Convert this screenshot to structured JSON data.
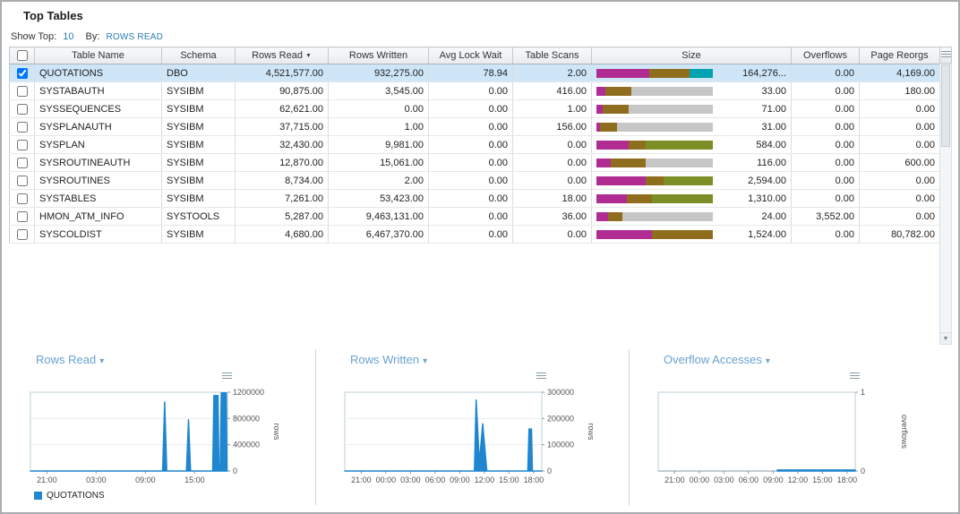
{
  "page": {
    "title": "Top Tables"
  },
  "controls": {
    "show_top_label": "Show Top:",
    "show_top_value": "10",
    "by_label": "By:",
    "by_value": "ROWS READ"
  },
  "table": {
    "headers": [
      "Table Name",
      "Schema",
      "Rows Read",
      "Rows Written",
      "Avg Lock Wait",
      "Table Scans",
      "Size",
      "Overflows",
      "Page Reorgs"
    ],
    "sort": {
      "column": "Rows Read",
      "direction": "desc"
    },
    "rows": [
      {
        "checked": true,
        "selected": true,
        "table_name": "QUOTATIONS",
        "schema": "DBO",
        "rows_read": "4,521,577.00",
        "rows_written": "932,275.00",
        "avg_lock_wait": "78.94",
        "table_scans": "2.00",
        "size_value": "164,276...",
        "overflows": "0.00",
        "page_reorgs": "4,169.00",
        "size_bar": [
          {
            "color": "#b02c92",
            "pct": 45
          },
          {
            "color": "#8f6d1f",
            "pct": 35
          },
          {
            "color": "#00a3af",
            "pct": 20
          }
        ]
      },
      {
        "checked": false,
        "selected": false,
        "table_name": "SYSTABAUTH",
        "schema": "SYSIBM",
        "rows_read": "90,875.00",
        "rows_written": "3,545.00",
        "avg_lock_wait": "0.00",
        "table_scans": "416.00",
        "size_value": "33.00",
        "overflows": "0.00",
        "page_reorgs": "180.00",
        "size_bar": [
          {
            "color": "#b02c92",
            "pct": 8
          },
          {
            "color": "#8f6d1f",
            "pct": 22
          },
          {
            "color": "#c6c6c6",
            "pct": 70
          }
        ]
      },
      {
        "checked": false,
        "selected": false,
        "table_name": "SYSSEQUENCES",
        "schema": "SYSIBM",
        "rows_read": "62,621.00",
        "rows_written": "0.00",
        "avg_lock_wait": "0.00",
        "table_scans": "1.00",
        "size_value": "71.00",
        "overflows": "0.00",
        "page_reorgs": "0.00",
        "size_bar": [
          {
            "color": "#b02c92",
            "pct": 5
          },
          {
            "color": "#8f6d1f",
            "pct": 23
          },
          {
            "color": "#c6c6c6",
            "pct": 72
          }
        ]
      },
      {
        "checked": false,
        "selected": false,
        "table_name": "SYSPLANAUTH",
        "schema": "SYSIBM",
        "rows_read": "37,715.00",
        "rows_written": "1.00",
        "avg_lock_wait": "0.00",
        "table_scans": "156.00",
        "size_value": "31.00",
        "overflows": "0.00",
        "page_reorgs": "0.00",
        "size_bar": [
          {
            "color": "#b02c92",
            "pct": 3
          },
          {
            "color": "#8f6d1f",
            "pct": 15
          },
          {
            "color": "#c6c6c6",
            "pct": 82
          }
        ]
      },
      {
        "checked": false,
        "selected": false,
        "table_name": "SYSPLAN",
        "schema": "SYSIBM",
        "rows_read": "32,430.00",
        "rows_written": "9,981.00",
        "avg_lock_wait": "0.00",
        "table_scans": "0.00",
        "size_value": "584.00",
        "overflows": "0.00",
        "page_reorgs": "0.00",
        "size_bar": [
          {
            "color": "#b02c92",
            "pct": 28
          },
          {
            "color": "#8f6d1f",
            "pct": 14
          },
          {
            "color": "#7c8f27",
            "pct": 58
          }
        ]
      },
      {
        "checked": false,
        "selected": false,
        "table_name": "SYSROUTINEAUTH",
        "schema": "SYSIBM",
        "rows_read": "12,870.00",
        "rows_written": "15,061.00",
        "avg_lock_wait": "0.00",
        "table_scans": "0.00",
        "size_value": "116.00",
        "overflows": "0.00",
        "page_reorgs": "600.00",
        "size_bar": [
          {
            "color": "#b02c92",
            "pct": 12
          },
          {
            "color": "#8f6d1f",
            "pct": 30
          },
          {
            "color": "#c6c6c6",
            "pct": 58
          }
        ]
      },
      {
        "checked": false,
        "selected": false,
        "table_name": "SYSROUTINES",
        "schema": "SYSIBM",
        "rows_read": "8,734.00",
        "rows_written": "2.00",
        "avg_lock_wait": "0.00",
        "table_scans": "0.00",
        "size_value": "2,594.00",
        "overflows": "0.00",
        "page_reorgs": "0.00",
        "size_bar": [
          {
            "color": "#b02c92",
            "pct": 42
          },
          {
            "color": "#8f6d1f",
            "pct": 16
          },
          {
            "color": "#7c8f27",
            "pct": 42
          }
        ]
      },
      {
        "checked": false,
        "selected": false,
        "table_name": "SYSTABLES",
        "schema": "SYSIBM",
        "rows_read": "7,261.00",
        "rows_written": "53,423.00",
        "avg_lock_wait": "0.00",
        "table_scans": "18.00",
        "size_value": "1,310.00",
        "overflows": "0.00",
        "page_reorgs": "0.00",
        "size_bar": [
          {
            "color": "#b02c92",
            "pct": 26
          },
          {
            "color": "#8f6d1f",
            "pct": 22
          },
          {
            "color": "#7c8f27",
            "pct": 52
          }
        ]
      },
      {
        "checked": false,
        "selected": false,
        "table_name": "HMON_ATM_INFO",
        "schema": "SYSTOOLS",
        "rows_read": "5,287.00",
        "rows_written": "9,463,131.00",
        "avg_lock_wait": "0.00",
        "table_scans": "36.00",
        "size_value": "24.00",
        "overflows": "3,552.00",
        "page_reorgs": "0.00",
        "size_bar": [
          {
            "color": "#b02c92",
            "pct": 10
          },
          {
            "color": "#8f6d1f",
            "pct": 12
          },
          {
            "color": "#c6c6c6",
            "pct": 78
          }
        ]
      },
      {
        "checked": false,
        "selected": false,
        "table_name": "SYSCOLDIST",
        "schema": "SYSIBM",
        "rows_read": "4,680.00",
        "rows_written": "6,467,370.00",
        "avg_lock_wait": "0.00",
        "table_scans": "0.00",
        "size_value": "1,524.00",
        "overflows": "0.00",
        "page_reorgs": "80,782.00",
        "size_bar": [
          {
            "color": "#b02c92",
            "pct": 48
          },
          {
            "color": "#8f6d1f",
            "pct": 52
          }
        ]
      }
    ]
  },
  "chart_data": [
    {
      "type": "line",
      "title": "Rows Read",
      "ylabel": "rows",
      "ymax": 1200000,
      "yticks": [
        0,
        400000,
        800000,
        1200000
      ],
      "x_start_hour": 19,
      "x_end_hour": 43,
      "xticks": [
        {
          "hour": 21,
          "label": "21:00"
        },
        {
          "hour": 27,
          "label": "03:00"
        },
        {
          "hour": 33,
          "label": "09:00"
        },
        {
          "hour": 39,
          "label": "15:00"
        }
      ],
      "series": [
        {
          "name": "QUOTATIONS",
          "color": "#1f86cf",
          "points": [
            [
              19,
              0
            ],
            [
              35.1,
              0
            ],
            [
              35.35,
              1050000
            ],
            [
              35.6,
              0
            ],
            [
              38.0,
              0
            ],
            [
              38.25,
              780000
            ],
            [
              38.5,
              0
            ],
            [
              41.2,
              0
            ],
            [
              41.35,
              1150000
            ],
            [
              41.85,
              1150000
            ],
            [
              41.95,
              0
            ],
            [
              42.1,
              0
            ],
            [
              42.25,
              1190000
            ],
            [
              42.85,
              1190000
            ],
            [
              42.95,
              0
            ],
            [
              43,
              0
            ]
          ]
        }
      ],
      "legend": [
        {
          "name": "QUOTATIONS",
          "color": "#1f86cf"
        }
      ]
    },
    {
      "type": "line",
      "title": "Rows Written",
      "ylabel": "rows",
      "ymax": 300000,
      "yticks": [
        0,
        100000,
        200000,
        300000
      ],
      "x_start_hour": 19,
      "x_end_hour": 43,
      "xticks": [
        {
          "hour": 21,
          "label": "21:00"
        },
        {
          "hour": 24,
          "label": "00:00"
        },
        {
          "hour": 27,
          "label": "03:00"
        },
        {
          "hour": 30,
          "label": "06:00"
        },
        {
          "hour": 33,
          "label": "09:00"
        },
        {
          "hour": 36,
          "label": "12:00"
        },
        {
          "hour": 39,
          "label": "15:00"
        },
        {
          "hour": 42,
          "label": "18:00"
        }
      ],
      "series": [
        {
          "name": "QUOTATIONS",
          "color": "#1f86cf",
          "points": [
            [
              19,
              0
            ],
            [
              34.8,
              0
            ],
            [
              35.0,
              270000
            ],
            [
              35.4,
              30000
            ],
            [
              35.8,
              180000
            ],
            [
              36.3,
              0
            ],
            [
              41.3,
              0
            ],
            [
              41.45,
              160000
            ],
            [
              41.75,
              160000
            ],
            [
              41.85,
              0
            ],
            [
              43,
              0
            ]
          ]
        }
      ]
    },
    {
      "type": "line",
      "title": "Overflow Accesses",
      "ylabel": "overflows",
      "ymax": 1,
      "yticks": [
        0,
        1
      ],
      "x_start_hour": 19,
      "x_end_hour": 43,
      "xticks": [
        {
          "hour": 21,
          "label": "21:00"
        },
        {
          "hour": 24,
          "label": "00:00"
        },
        {
          "hour": 27,
          "label": "03:00"
        },
        {
          "hour": 30,
          "label": "06:00"
        },
        {
          "hour": 33,
          "label": "09:00"
        },
        {
          "hour": 36,
          "label": "12:00"
        },
        {
          "hour": 39,
          "label": "15:00"
        },
        {
          "hour": 42,
          "label": "18:00"
        }
      ],
      "series": [
        {
          "name": "QUOTATIONS",
          "color": "#1f86cf",
          "points": [
            [
              33.5,
              0.012
            ],
            [
              43,
              0.012
            ]
          ]
        }
      ]
    }
  ]
}
